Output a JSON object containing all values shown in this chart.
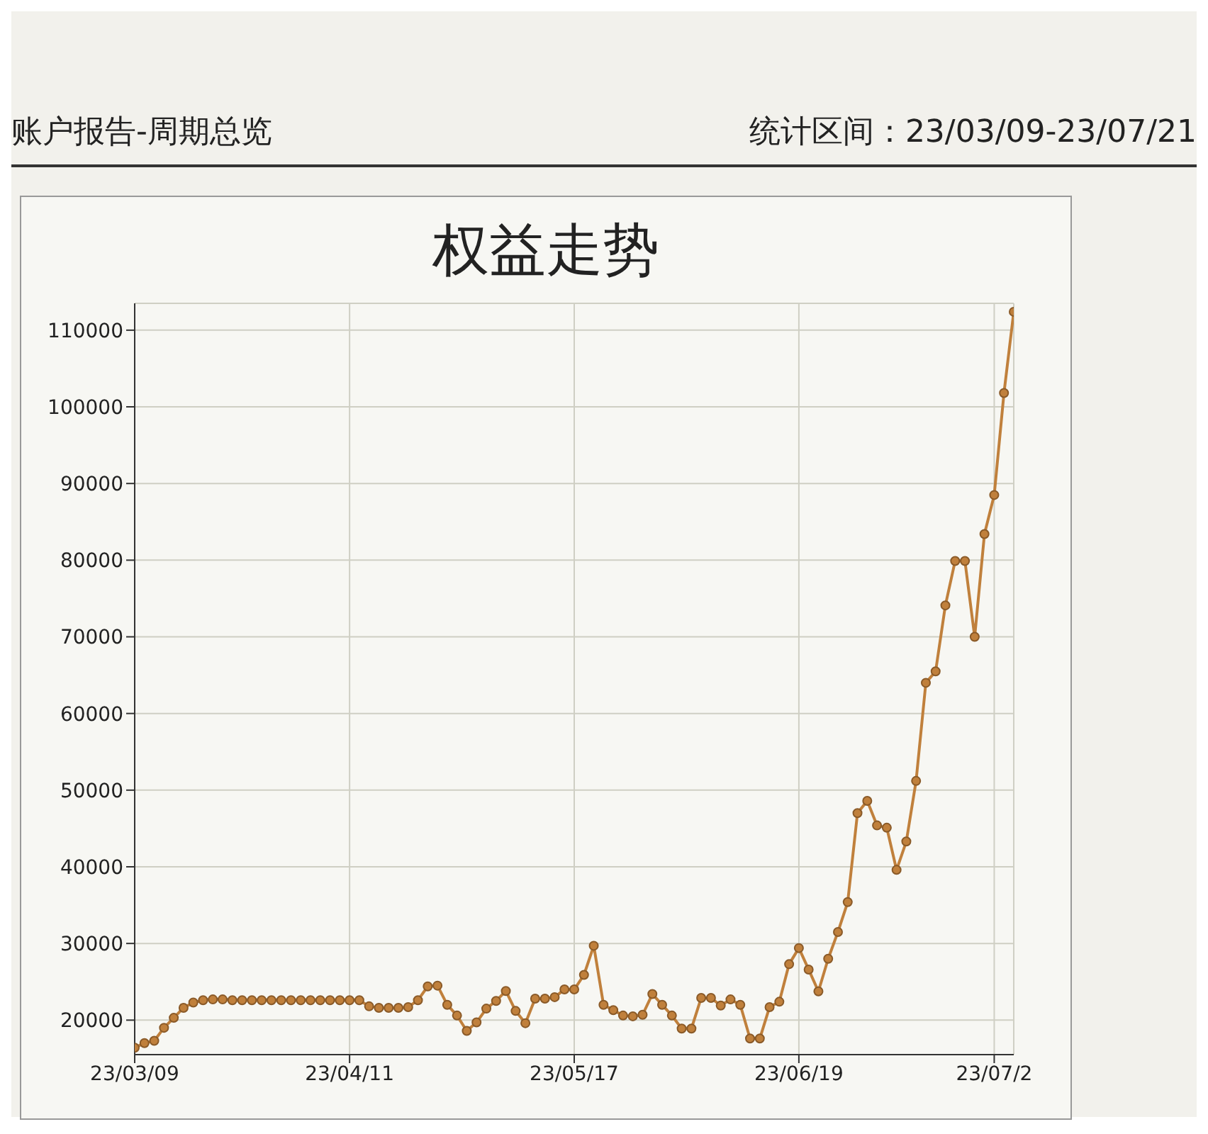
{
  "chart_data": {
    "type": "line",
    "title": "权益走势",
    "annotations": [
      "账户报告-周期总览",
      "统计区间：23/03/09-23/07/21"
    ],
    "categories": [
      "23/03/09",
      null,
      null,
      null,
      null,
      null,
      null,
      null,
      null,
      null,
      null,
      null,
      null,
      null,
      null,
      null,
      null,
      null,
      null,
      null,
      null,
      null,
      "23/04/11",
      null,
      null,
      null,
      null,
      null,
      null,
      null,
      null,
      null,
      null,
      null,
      null,
      null,
      null,
      null,
      null,
      null,
      null,
      null,
      null,
      null,
      null,
      "23/05/17",
      null,
      null,
      null,
      null,
      null,
      null,
      null,
      null,
      null,
      null,
      null,
      null,
      null,
      null,
      null,
      null,
      null,
      null,
      null,
      null,
      null,
      null,
      "23/06/19",
      null,
      null,
      null,
      null,
      null,
      null,
      null,
      null,
      null,
      null,
      null,
      null,
      null,
      null,
      null,
      null,
      null,
      null,
      null,
      "23/07/2",
      null,
      null
    ],
    "series": [
      {
        "color": "#c0803c",
        "values": [
          16400,
          17000,
          17300,
          19000,
          20300,
          21600,
          22300,
          22600,
          22700,
          22700,
          22600,
          22600,
          22600,
          22600,
          22600,
          22600,
          22600,
          22600,
          22600,
          22600,
          22600,
          22600,
          22600,
          22600,
          21800,
          21600,
          21600,
          21600,
          21700,
          22600,
          24400,
          24500,
          22000,
          20600,
          18600,
          19700,
          21500,
          22500,
          23800,
          21200,
          19600,
          22800,
          22800,
          23000,
          24000,
          24000,
          25900,
          29700,
          22000,
          21300,
          20600,
          20500,
          20700,
          23400,
          22000,
          20600,
          18900,
          18900,
          22900,
          22900,
          21900,
          22700,
          22000,
          17600,
          17600,
          21700,
          22400,
          27300,
          29400,
          26600,
          23750,
          28000,
          31500,
          35400,
          47000,
          48600,
          45400,
          45100,
          39600,
          43300,
          51200,
          64000,
          65500,
          74100,
          79900,
          79900,
          70000,
          83400,
          88500,
          101800,
          112400
        ]
      }
    ],
    "ylim": [
      15500,
      113500
    ],
    "yticks": [
      20000,
      30000,
      40000,
      50000,
      60000,
      70000,
      80000,
      90000,
      100000,
      110000
    ],
    "grid": true,
    "marker": "circle",
    "line_style": "solid"
  }
}
